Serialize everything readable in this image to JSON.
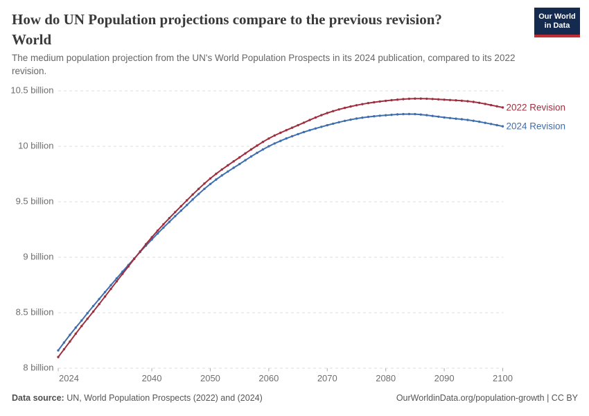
{
  "header": {
    "title": "How do UN Population projections compare to the previous revision?",
    "entity": "World",
    "subtitle": "The medium population projection from the UN's World Population Prospects in its 2024 publication, compared to its 2022 revision.",
    "logo": {
      "line1": "Our World",
      "line2": "in Data"
    }
  },
  "footer": {
    "datasource_label": "Data source:",
    "datasource_value": " UN, World Population Prospects (2022) and (2024)",
    "attribution": "OurWorldinData.org/population-growth | CC BY"
  },
  "chart_data": {
    "type": "line",
    "unit": "billion people",
    "x_range": [
      2024,
      2100
    ],
    "y_range": [
      8,
      10.5
    ],
    "grid": true,
    "marker_interval_years": 1,
    "y_ticks": [
      {
        "value": 8,
        "label": "8 billion"
      },
      {
        "value": 8.5,
        "label": "8.5 billion"
      },
      {
        "value": 9,
        "label": "9 billion"
      },
      {
        "value": 9.5,
        "label": "9.5 billion"
      },
      {
        "value": 10,
        "label": "10 billion"
      },
      {
        "value": 10.5,
        "label": "10.5 billion"
      }
    ],
    "x_ticks": [
      {
        "value": 2024,
        "label": "2024"
      },
      {
        "value": 2040,
        "label": "2040"
      },
      {
        "value": 2050,
        "label": "2050"
      },
      {
        "value": 2060,
        "label": "2060"
      },
      {
        "value": 2070,
        "label": "2070"
      },
      {
        "value": 2080,
        "label": "2080"
      },
      {
        "value": 2090,
        "label": "2090"
      },
      {
        "value": 2100,
        "label": "2100"
      }
    ],
    "series": [
      {
        "name": "2022 Revision",
        "color": "#9e2f3f",
        "points": [
          [
            2024,
            8.1
          ],
          [
            2026,
            8.24
          ],
          [
            2028,
            8.38
          ],
          [
            2030,
            8.51
          ],
          [
            2035,
            8.85
          ],
          [
            2040,
            9.18
          ],
          [
            2045,
            9.46
          ],
          [
            2050,
            9.71
          ],
          [
            2055,
            9.9
          ],
          [
            2060,
            10.07
          ],
          [
            2065,
            10.19
          ],
          [
            2070,
            10.3
          ],
          [
            2075,
            10.37
          ],
          [
            2080,
            10.41
          ],
          [
            2085,
            10.43
          ],
          [
            2090,
            10.42
          ],
          [
            2095,
            10.4
          ],
          [
            2100,
            10.35
          ]
        ]
      },
      {
        "name": "2024 Revision",
        "color": "#3f6eae",
        "points": [
          [
            2024,
            8.16
          ],
          [
            2026,
            8.3
          ],
          [
            2028,
            8.43
          ],
          [
            2030,
            8.56
          ],
          [
            2035,
            8.87
          ],
          [
            2040,
            9.16
          ],
          [
            2045,
            9.42
          ],
          [
            2050,
            9.66
          ],
          [
            2055,
            9.84
          ],
          [
            2060,
            10.0
          ],
          [
            2065,
            10.11
          ],
          [
            2070,
            10.19
          ],
          [
            2075,
            10.25
          ],
          [
            2080,
            10.28
          ],
          [
            2085,
            10.29
          ],
          [
            2090,
            10.26
          ],
          [
            2095,
            10.23
          ],
          [
            2100,
            10.18
          ]
        ]
      }
    ]
  }
}
